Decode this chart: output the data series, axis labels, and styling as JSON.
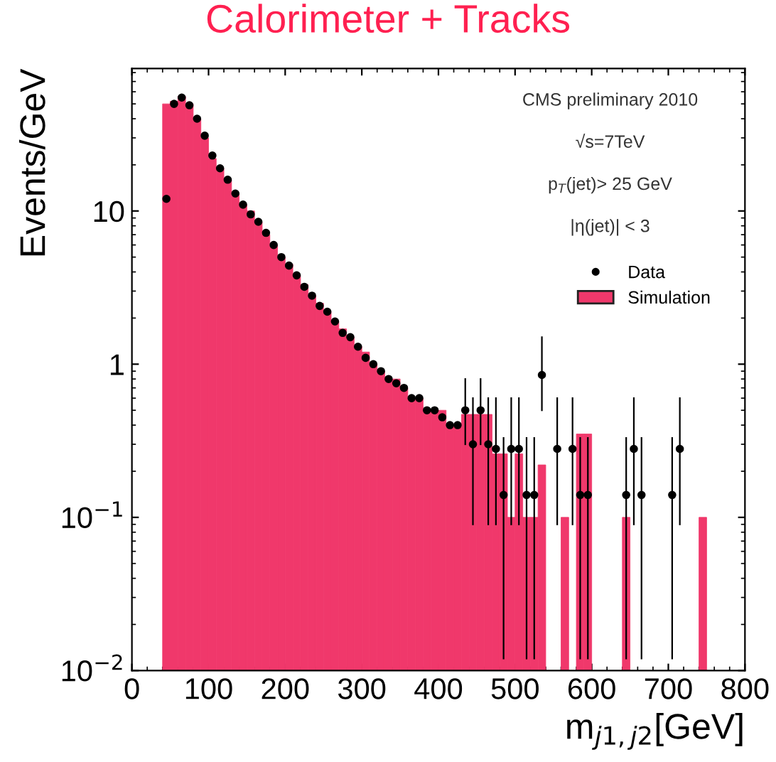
{
  "chart_data": {
    "type": "histogram",
    "title": "Calorimeter + Tracks",
    "xlabel": "m$_{j1,j2}$[GeV]",
    "ylabel": "Events/GeV",
    "bins": [
      40,
      50,
      60,
      70,
      80,
      90,
      100,
      110,
      120,
      130,
      140,
      150,
      160,
      170,
      180,
      190,
      200,
      210,
      220,
      230,
      240,
      250,
      260,
      270,
      280,
      290,
      300,
      310,
      320,
      330,
      340,
      350,
      360,
      370,
      380,
      390,
      400,
      410,
      420,
      430,
      440,
      450,
      460,
      470,
      480,
      490,
      500,
      510,
      520,
      530,
      540,
      550,
      560,
      570,
      580,
      590,
      600,
      610,
      620,
      630,
      640,
      650,
      660,
      670,
      680,
      690,
      700,
      710,
      720,
      730,
      740,
      750,
      760
    ],
    "series": [
      {
        "name": "Simulation",
        "color": "#f0386b",
        "values": [
          50,
          52,
          56,
          50,
          40,
          30,
          22,
          19,
          16,
          13,
          11,
          10,
          8.5,
          7,
          6,
          5,
          4.5,
          3.8,
          3.3,
          2.8,
          2.5,
          2.2,
          1.9,
          1.7,
          1.5,
          1.3,
          1.2,
          1.0,
          0.9,
          0.8,
          0.8,
          0.7,
          0.6,
          0.6,
          0.5,
          0.5,
          0.5,
          0.4,
          0.4,
          0.47,
          0.47,
          0.47,
          0.47,
          0.26,
          0.26,
          0.1,
          0.26,
          0.1,
          0.1,
          0.22,
          null,
          null,
          0.1,
          null,
          0.35,
          0.35,
          null,
          null,
          null,
          null,
          0.1,
          null,
          null,
          null,
          null,
          null,
          null,
          null,
          null,
          null,
          0.1,
          null
        ]
      },
      {
        "name": "Data",
        "type": "scatter",
        "color": "#000000",
        "marker": "circle",
        "x": [
          45,
          55,
          65,
          75,
          85,
          95,
          105,
          115,
          125,
          135,
          145,
          155,
          165,
          175,
          185,
          195,
          205,
          215,
          225,
          235,
          245,
          255,
          265,
          275,
          285,
          295,
          305,
          315,
          325,
          335,
          345,
          355,
          365,
          375,
          385,
          395,
          405,
          415,
          425,
          435,
          445,
          455,
          465,
          475,
          485,
          495,
          505,
          515,
          525,
          535,
          555,
          575,
          585,
          595,
          645,
          655,
          665,
          705,
          715
        ],
        "values": [
          12,
          50,
          55,
          49,
          40,
          31,
          23,
          19,
          16,
          13,
          11,
          9.5,
          8.5,
          7.2,
          6,
          5,
          4.4,
          3.8,
          3.2,
          2.8,
          2.4,
          2.2,
          1.9,
          1.6,
          1.5,
          1.3,
          1.1,
          1.0,
          0.9,
          0.8,
          0.75,
          0.7,
          0.6,
          0.6,
          0.5,
          0.5,
          0.45,
          0.4,
          0.4,
          0.5,
          0.3,
          0.5,
          0.3,
          0.28,
          0.14,
          0.28,
          0.28,
          0.14,
          0.14,
          0.85,
          0.28,
          0.28,
          0.14,
          0.14,
          0.14,
          0.28,
          0.14,
          0.14,
          0.28
        ],
        "errors": [
          null,
          null,
          null,
          null,
          null,
          null,
          null,
          null,
          null,
          null,
          null,
          null,
          null,
          null,
          null,
          null,
          null,
          null,
          null,
          null,
          null,
          null,
          null,
          null,
          null,
          null,
          null,
          null,
          null,
          null,
          null,
          null,
          null,
          null,
          null,
          null,
          null,
          null,
          null,
          [
            0.3,
            0.8
          ],
          [
            0.09,
            0.6
          ],
          [
            0.3,
            0.8
          ],
          [
            0.09,
            0.6
          ],
          [
            0.09,
            0.6
          ],
          [
            0.012,
            0.33
          ],
          [
            0.09,
            0.6
          ],
          [
            0.09,
            0.6
          ],
          [
            0.012,
            0.33
          ],
          [
            0.012,
            0.33
          ],
          [
            0.5,
            1.5
          ],
          [
            0.09,
            0.6
          ],
          [
            0.09,
            0.6
          ],
          [
            0.012,
            0.33
          ],
          [
            0.012,
            0.33
          ],
          [
            0.012,
            0.33
          ],
          [
            0.09,
            0.6
          ],
          [
            0.012,
            0.33
          ],
          [
            0.012,
            0.33
          ],
          [
            0.09,
            0.6
          ]
        ]
      }
    ],
    "annotations": [
      "CMS preliminary 2010",
      "√s=7TeV",
      "p$_{T}$(jet)> 25 GeV",
      "|η(jet)| < 3"
    ],
    "log": "y",
    "xlim": [
      0,
      800
    ],
    "xticks": [
      0,
      100,
      200,
      300,
      400,
      500,
      600,
      700,
      800
    ],
    "ylim": [
      0.01,
      85
    ],
    "yticks": [
      {
        "value": 0.01,
        "label": "10$^{−2}$"
      },
      {
        "value": 0.1,
        "label": "10$^{−1}$"
      },
      1,
      10
    ],
    "legend": "top right",
    "grid": false
  }
}
